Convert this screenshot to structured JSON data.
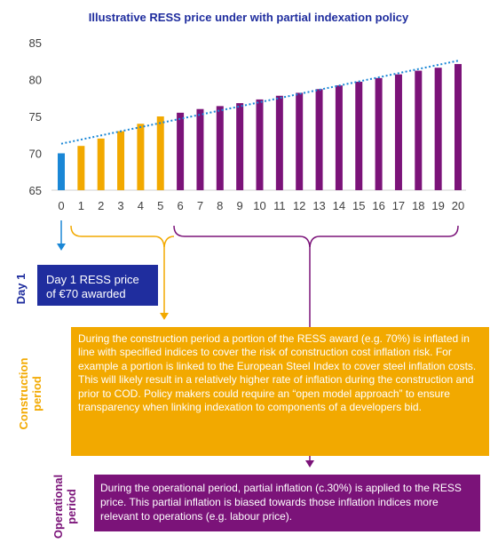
{
  "chart_data": {
    "type": "bar",
    "title": "Illustrative RESS price under with partial indexation policy",
    "categories": [
      "0",
      "1",
      "2",
      "3",
      "4",
      "5",
      "6",
      "7",
      "8",
      "9",
      "10",
      "11",
      "12",
      "13",
      "14",
      "15",
      "16",
      "17",
      "18",
      "19",
      "20"
    ],
    "values": [
      70,
      71,
      72,
      73,
      74,
      75,
      75.5,
      76,
      76.4,
      76.8,
      77.3,
      77.8,
      78.2,
      78.7,
      79.2,
      79.7,
      80.2,
      80.7,
      81.2,
      81.6,
      82.1
    ],
    "ylim": [
      65,
      85
    ],
    "yticks": [
      65,
      70,
      75,
      80,
      85
    ],
    "grid": false,
    "phases": [
      {
        "name": "Day 1",
        "range": [
          0,
          0
        ],
        "color": "#1a87d6"
      },
      {
        "name": "Construction period",
        "range": [
          1,
          5
        ],
        "color": "#f2a900"
      },
      {
        "name": "Operational period",
        "range": [
          6,
          20
        ],
        "color": "#7b1379"
      }
    ],
    "trendline": {
      "style": "dotted",
      "color": "#1a87d6",
      "from": 71.3,
      "to": 82.6
    }
  },
  "annotations": {
    "day1_label": "Day 1",
    "day1_box": "Day 1 RESS price of €70 awarded",
    "construction_label_1": "Construction",
    "construction_label_2": "period",
    "construction_text": "During the construction period a portion of the RESS award (e.g. 70%) is inflated in line with specified indices to cover the risk of construction cost inflation risk. For example a portion is linked to the European Steel Index to cover steel inflation costs. This will likely result in a relatively higher rate of inflation during the construction and prior to COD. Policy makers could require an “open model approach” to ensure transparency when linking indexation to components of a developers bid.",
    "operational_label_1": "Operational",
    "operational_label_2": "period",
    "operational_text": "During the operational period, partial inflation (c.30%) is applied to the RESS price. This partial inflation is biased towards those inflation indices more relevant to operations (e.g. labour price)."
  },
  "colors": {
    "blue": "#1a87d6",
    "gold": "#f2a900",
    "purple": "#7b1379",
    "navy": "#1f2d9e"
  }
}
